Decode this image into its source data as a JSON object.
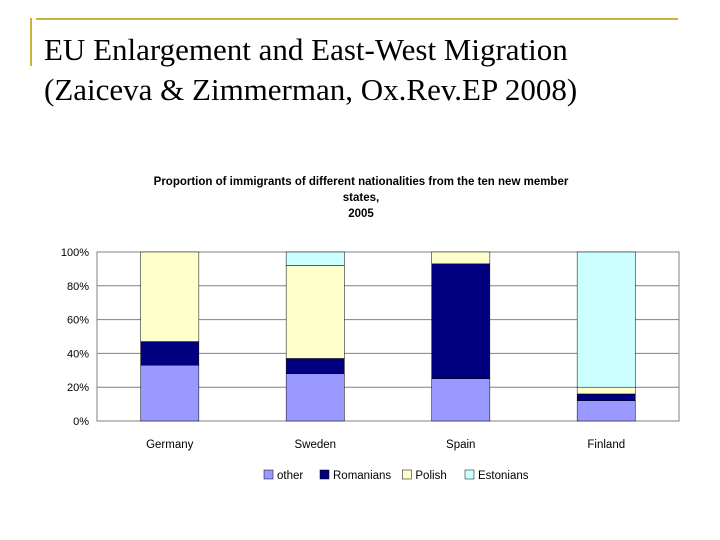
{
  "slide": {
    "title_line1": "EU Enlargement and East-West Migration",
    "title_line2": "(Zaiceva & Zimmerman, Ox.Rev.EP 2008)"
  },
  "chart_data": {
    "type": "bar",
    "stacked": true,
    "percent": true,
    "title_lines": [
      "Proportion of immigrants of different nationalities from the ten new member",
      "states,",
      "2005"
    ],
    "categories": [
      "Germany",
      "Sweden",
      "Spain",
      "Finland"
    ],
    "yticks": [
      "0%",
      "20%",
      "40%",
      "60%",
      "80%",
      "100%"
    ],
    "ylim": [
      0,
      100
    ],
    "legend_position": "bottom",
    "series": [
      {
        "name": "other",
        "color": "#9999ff",
        "values": [
          33,
          28,
          25,
          12
        ]
      },
      {
        "name": "Romanians",
        "color": "#000080",
        "values": [
          14,
          9,
          68,
          4
        ]
      },
      {
        "name": "Polish",
        "color": "#ffffcc",
        "values": [
          53,
          55,
          7,
          4
        ]
      },
      {
        "name": "Estonians",
        "color": "#ccffff",
        "values": [
          0,
          8,
          0,
          80
        ]
      }
    ]
  }
}
